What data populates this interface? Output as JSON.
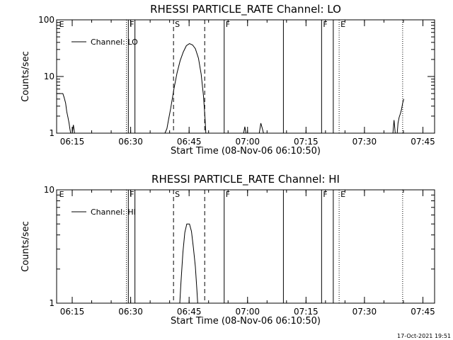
{
  "footer": {
    "timestamp": "17-Oct-2021 19:51"
  },
  "chart_data": [
    {
      "type": "line",
      "title": "RHESSI PARTICLE_RATE Channel: LO",
      "xlabel": "Start Time (08-Nov-06 06:10:50)",
      "ylabel": "Counts/sec",
      "y_scale": "log",
      "xlim": [
        0,
        97
      ],
      "ylim": [
        1,
        100
      ],
      "x_ticks": [
        {
          "x": 4,
          "label": "06:15"
        },
        {
          "x": 19,
          "label": "06:30"
        },
        {
          "x": 34,
          "label": "06:45"
        },
        {
          "x": 49,
          "label": "07:00"
        },
        {
          "x": 64,
          "label": "07:15"
        },
        {
          "x": 79,
          "label": "07:30"
        },
        {
          "x": 94,
          "label": "07:45"
        }
      ],
      "y_ticks": [
        {
          "y": 1,
          "label": "1"
        },
        {
          "y": 10,
          "label": "10"
        },
        {
          "y": 100,
          "label": "100"
        }
      ],
      "legend": {
        "label": "Channel: LO",
        "placement": "top-left"
      },
      "markers": [
        {
          "x": 0.3,
          "label": "E",
          "style": "none"
        },
        {
          "x": 17.9,
          "label": "",
          "style": "dotted"
        },
        {
          "x": 18.4,
          "label": "F",
          "style": "solid"
        },
        {
          "x": 20.1,
          "label": "",
          "style": "solid"
        },
        {
          "x": 30.0,
          "label": "S",
          "style": "dashed"
        },
        {
          "x": 38.0,
          "label": "",
          "style": "dashed"
        },
        {
          "x": 43.0,
          "label": "F",
          "style": "solid"
        },
        {
          "x": 58.2,
          "label": "",
          "style": "solid"
        },
        {
          "x": 68.0,
          "label": "F",
          "style": "solid"
        },
        {
          "x": 71.0,
          "label": "",
          "style": "solid"
        },
        {
          "x": 72.5,
          "label": "E",
          "style": "dotted"
        },
        {
          "x": 88.8,
          "label": "",
          "style": "dotted"
        }
      ],
      "series": [
        {
          "name": "",
          "segments": [
            [
              [
                0,
                5
              ],
              [
                1.6,
                5
              ],
              [
                1.9,
                4.3
              ],
              [
                2.3,
                3.4
              ],
              [
                2.6,
                2.4
              ],
              [
                2.9,
                1.9
              ],
              [
                3.2,
                1.5
              ],
              [
                3.4,
                1.2
              ],
              [
                3.6,
                1.0
              ]
            ],
            [
              [
                4.0,
                1.0
              ],
              [
                4.3,
                1.4
              ],
              [
                4.6,
                1.0
              ]
            ],
            [
              [
                27.8,
                1.0
              ],
              [
                28.3,
                1.2
              ],
              [
                28.7,
                1.7
              ],
              [
                29.3,
                2.8
              ],
              [
                30.1,
                6.0
              ],
              [
                30.9,
                11.5
              ],
              [
                31.7,
                19
              ],
              [
                32.5,
                27
              ],
              [
                33.3,
                35
              ],
              [
                34.1,
                38
              ],
              [
                34.9,
                36
              ],
              [
                35.6,
                31
              ],
              [
                36.4,
                21
              ],
              [
                37.1,
                11
              ],
              [
                37.7,
                4.5
              ],
              [
                38.1,
                1.8
              ],
              [
                38.3,
                1.0
              ]
            ],
            [
              [
                48.0,
                1.0
              ],
              [
                48.3,
                1.3
              ],
              [
                48.6,
                1.0
              ]
            ],
            [
              [
                52.0,
                1.0
              ],
              [
                52.4,
                1.5
              ],
              [
                52.8,
                1.2
              ],
              [
                53.1,
                1.0
              ]
            ],
            [
              [
                86.3,
                1.0
              ],
              [
                86.6,
                1.7
              ],
              [
                86.9,
                1.0
              ]
            ],
            [
              [
                87.4,
                1.0
              ],
              [
                87.6,
                1.5
              ],
              [
                87.9,
                1.9
              ],
              [
                88.2,
                2.2
              ],
              [
                88.5,
                2.6
              ],
              [
                88.8,
                3.4
              ],
              [
                89.1,
                4.0
              ]
            ]
          ]
        }
      ]
    },
    {
      "type": "line",
      "title": "RHESSI PARTICLE_RATE Channel: HI",
      "xlabel": "Start Time (08-Nov-06 06:10:50)",
      "ylabel": "Counts/sec",
      "y_scale": "log",
      "xlim": [
        0,
        97
      ],
      "ylim": [
        1,
        10
      ],
      "x_ticks": [
        {
          "x": 4,
          "label": "06:15"
        },
        {
          "x": 19,
          "label": "06:30"
        },
        {
          "x": 34,
          "label": "06:45"
        },
        {
          "x": 49,
          "label": "07:00"
        },
        {
          "x": 64,
          "label": "07:15"
        },
        {
          "x": 79,
          "label": "07:30"
        },
        {
          "x": 94,
          "label": "07:45"
        }
      ],
      "y_ticks": [
        {
          "y": 1,
          "label": "1"
        },
        {
          "y": 10,
          "label": "10"
        }
      ],
      "legend": {
        "label": "Channel: HI",
        "placement": "top-left"
      },
      "markers": [
        {
          "x": 0.3,
          "label": "E",
          "style": "none"
        },
        {
          "x": 17.9,
          "label": "",
          "style": "dotted"
        },
        {
          "x": 18.4,
          "label": "F",
          "style": "solid"
        },
        {
          "x": 20.1,
          "label": "",
          "style": "solid"
        },
        {
          "x": 30.0,
          "label": "S",
          "style": "dashed"
        },
        {
          "x": 38.0,
          "label": "",
          "style": "dashed"
        },
        {
          "x": 43.0,
          "label": "F",
          "style": "solid"
        },
        {
          "x": 58.2,
          "label": "",
          "style": "solid"
        },
        {
          "x": 68.0,
          "label": "F",
          "style": "solid"
        },
        {
          "x": 71.0,
          "label": "",
          "style": "solid"
        },
        {
          "x": 72.5,
          "label": "E",
          "style": "dotted"
        },
        {
          "x": 88.8,
          "label": "",
          "style": "dotted"
        }
      ],
      "series": [
        {
          "name": "",
          "segments": [
            [
              [
                31.6,
                1.0
              ],
              [
                31.9,
                1.5
              ],
              [
                32.4,
                2.8
              ],
              [
                32.9,
                4.2
              ],
              [
                33.4,
                5.0
              ],
              [
                34.1,
                5.0
              ],
              [
                34.6,
                4.3
              ],
              [
                35.1,
                3.1
              ],
              [
                35.6,
                2.1
              ],
              [
                36.0,
                1.3
              ],
              [
                36.2,
                1.0
              ]
            ]
          ]
        }
      ]
    }
  ]
}
